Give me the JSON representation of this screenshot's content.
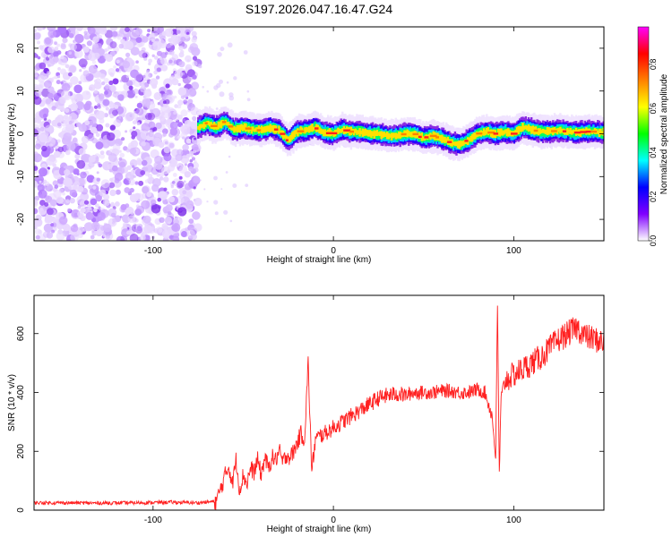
{
  "title": "S197.2026.047.16.47.G24",
  "chart_data": [
    {
      "type": "heatmap",
      "xlabel": "Height of straight line (km)",
      "ylabel": "Frequency (Hz)",
      "xlim": [
        -166,
        150
      ],
      "ylim": [
        -25,
        25
      ],
      "x_ticks": [
        -100,
        0,
        100
      ],
      "y_ticks": [
        -20,
        -10,
        0,
        10,
        20
      ],
      "colorbar": {
        "label": "Normalized spectral amplitude",
        "range": [
          0,
          0.97
        ],
        "ticks": [
          "0.0",
          "0.2",
          "0.4",
          "0.6",
          "0.8"
        ],
        "colors": [
          "#ffffff",
          "#8000ff",
          "#0000ff",
          "#00ffff",
          "#00ff00",
          "#ffff00",
          "#ff8000",
          "#ff0000",
          "#ff00ff"
        ]
      },
      "noise_region_x": [
        -166,
        -75
      ],
      "ridge": {
        "x": [
          -75,
          -70,
          -65,
          -60,
          -55,
          -50,
          -45,
          -40,
          -35,
          -30,
          -25,
          -20,
          -15,
          -10,
          -5,
          0,
          5,
          10,
          15,
          20,
          25,
          30,
          35,
          40,
          45,
          50,
          55,
          60,
          65,
          70,
          75,
          80,
          85,
          90,
          95,
          100,
          105,
          110,
          115,
          120,
          125,
          130,
          135,
          140,
          145,
          150
        ],
        "y": [
          1.5,
          2.5,
          1.5,
          2.8,
          1.0,
          1.5,
          1.0,
          0.8,
          1.5,
          0.8,
          -1.5,
          0.5,
          0.8,
          1.5,
          0.3,
          0.0,
          1.0,
          0.5,
          0.5,
          0.0,
          0.0,
          -0.5,
          -0.5,
          0.0,
          0.0,
          -1.0,
          -0.5,
          -1.0,
          -2.0,
          -2.5,
          -1.5,
          0.0,
          0.5,
          0.0,
          0.5,
          0.0,
          1.5,
          1.0,
          0.5,
          0.5,
          0.8,
          0.5,
          0.3,
          0.5,
          0.5,
          0.3
        ]
      }
    },
    {
      "type": "line",
      "xlabel": "Height of straight line (km)",
      "ylabel": "SNR (10 * v/v)",
      "xlim": [
        -166,
        150
      ],
      "ylim": [
        0,
        730
      ],
      "x_ticks": [
        -100,
        0,
        100
      ],
      "y_ticks": [
        0,
        200,
        400,
        600
      ],
      "series": [
        {
          "color": "#ff2020",
          "x": [
            -166,
            -150,
            -130,
            -110,
            -90,
            -75,
            -65,
            -62,
            -60,
            -58,
            -56,
            -54,
            -52,
            -50,
            -48,
            -46,
            -44,
            -42,
            -40,
            -38,
            -36,
            -34,
            -32,
            -30,
            -28,
            -26,
            -24,
            -22,
            -20,
            -18,
            -16,
            -14,
            -12,
            -10,
            -8,
            -5,
            0,
            5,
            10,
            15,
            20,
            25,
            30,
            35,
            40,
            45,
            50,
            55,
            60,
            65,
            70,
            75,
            80,
            84,
            88,
            90,
            91,
            92,
            93,
            95,
            100,
            105,
            110,
            115,
            120,
            125,
            130,
            135,
            140,
            145,
            150
          ],
          "y": [
            25,
            25,
            24,
            25,
            27,
            25,
            30,
            80,
            120,
            150,
            90,
            170,
            70,
            120,
            90,
            140,
            130,
            170,
            120,
            180,
            140,
            180,
            170,
            200,
            160,
            190,
            180,
            200,
            230,
            260,
            240,
            500,
            130,
            240,
            250,
            260,
            280,
            300,
            320,
            340,
            360,
            380,
            390,
            395,
            390,
            400,
            400,
            400,
            405,
            405,
            400,
            400,
            410,
            400,
            320,
            180,
            700,
            120,
            380,
            440,
            460,
            480,
            500,
            520,
            550,
            580,
            600,
            620,
            590,
            580,
            570
          ]
        }
      ]
    }
  ]
}
